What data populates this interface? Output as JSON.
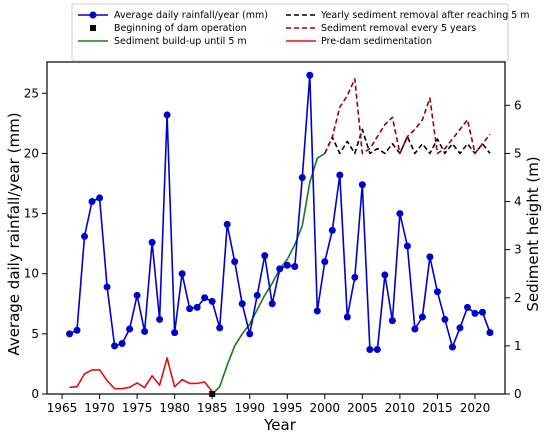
{
  "chart_data": {
    "type": "line",
    "xlabel": "Year",
    "ylabel_left": "Average daily rainfall/year (mm)",
    "ylabel_right": "Sediment height (m)",
    "xlim": [
      1963,
      2024
    ],
    "ylim_left": [
      0,
      27.6
    ],
    "ylim_right": [
      0,
      6.9
    ],
    "x_ticks": [
      1965,
      1970,
      1975,
      1980,
      1985,
      1990,
      1995,
      2000,
      2005,
      2010,
      2015,
      2020
    ],
    "y_ticks_left": [
      0,
      5,
      10,
      15,
      20,
      25
    ],
    "y_ticks_right": [
      0,
      1,
      2,
      3,
      4,
      5,
      6
    ],
    "grid": false,
    "legend": {
      "placement": "top",
      "entries": [
        "Average daily rainfall/year (mm)",
        "Beginning of dam operation",
        "Sediment build-up until 5 m",
        "Yearly sediment removal after reaching 5 m",
        "Sediment removal every 5 years",
        "Pre-dam sedimentation"
      ]
    },
    "series": [
      {
        "name": "Average daily rainfall/year (mm)",
        "axis": "left",
        "color": "#0000cc",
        "style": "solid-markers",
        "x": [
          1966,
          1967,
          1968,
          1969,
          1970,
          1971,
          1972,
          1973,
          1974,
          1975,
          1976,
          1977,
          1978,
          1979,
          1980,
          1981,
          1982,
          1983,
          1984,
          1985,
          1986,
          1987,
          1988,
          1989,
          1990,
          1991,
          1992,
          1993,
          1994,
          1995,
          1996,
          1997,
          1998,
          1999,
          2000,
          2001,
          2002,
          2003,
          2004,
          2005,
          2006,
          2007,
          2008,
          2009,
          2010,
          2011,
          2012,
          2013,
          2014,
          2015,
          2016,
          2017,
          2018,
          2019,
          2020,
          2021,
          2022
        ],
        "y": [
          5.0,
          5.3,
          13.1,
          16.0,
          16.3,
          8.9,
          4.0,
          4.2,
          5.4,
          8.2,
          5.2,
          12.6,
          6.2,
          23.2,
          5.1,
          10.0,
          7.1,
          7.2,
          8.0,
          7.7,
          5.5,
          14.1,
          11.0,
          7.5,
          5.0,
          8.2,
          11.5,
          7.5,
          10.4,
          10.7,
          10.6,
          18.0,
          26.5,
          6.9,
          11.0,
          13.6,
          18.2,
          6.4,
          9.7,
          17.4,
          3.7,
          3.7,
          9.9,
          6.1,
          15.0,
          12.3,
          5.4,
          6.4,
          11.4,
          8.5,
          6.2,
          3.9,
          5.5,
          7.2,
          6.7,
          6.8,
          5.1
        ]
      },
      {
        "name": "Pre-dam sedimentation",
        "axis": "right",
        "color": "#dd1111",
        "style": "solid",
        "x": [
          1966,
          1967,
          1968,
          1969,
          1970,
          1971,
          1972,
          1973,
          1974,
          1975,
          1976,
          1977,
          1978,
          1979,
          1980,
          1981,
          1982,
          1983,
          1984,
          1985
        ],
        "y": [
          0.14,
          0.15,
          0.42,
          0.5,
          0.5,
          0.28,
          0.11,
          0.11,
          0.14,
          0.23,
          0.13,
          0.38,
          0.18,
          0.75,
          0.15,
          0.3,
          0.22,
          0.22,
          0.25,
          0.05
        ]
      },
      {
        "name": "Sediment build-up until 5 m",
        "axis": "right",
        "color": "#1a7a1a",
        "style": "solid",
        "x": [
          1985,
          1986,
          1987,
          1988,
          1989,
          1990,
          1991,
          1992,
          1993,
          1994,
          1995,
          1996,
          1997,
          1998,
          1999,
          2000
        ],
        "y": [
          0.0,
          0.15,
          0.6,
          1.0,
          1.25,
          1.45,
          1.75,
          2.05,
          2.3,
          2.6,
          2.8,
          3.1,
          3.5,
          4.4,
          4.9,
          5.0
        ]
      },
      {
        "name": "Yearly sediment removal after reaching 5 m",
        "axis": "right",
        "color": "#000000",
        "style": "dashed",
        "x": [
          2000,
          2001,
          2002,
          2003,
          2004,
          2005,
          2006,
          2007,
          2008,
          2009,
          2010,
          2011,
          2012,
          2013,
          2014,
          2015,
          2016,
          2017,
          2018,
          2019,
          2020,
          2021,
          2022
        ],
        "y": [
          5.0,
          5.34,
          5.0,
          5.25,
          5.0,
          5.5,
          5.0,
          5.1,
          5.0,
          5.2,
          5.0,
          5.35,
          5.0,
          5.2,
          5.0,
          5.3,
          5.0,
          5.2,
          5.0,
          5.2,
          5.0,
          5.2,
          5.0
        ]
      },
      {
        "name": "Sediment removal every 5 years",
        "axis": "right",
        "color": "#990000",
        "style": "dashed",
        "x": [
          2000,
          2001,
          2002,
          2003,
          2004,
          2005,
          2006,
          2007,
          2008,
          2009,
          2010,
          2011,
          2012,
          2013,
          2014,
          2015,
          2016,
          2017,
          2018,
          2019,
          2020,
          2021,
          2022
        ],
        "y": [
          5.0,
          5.34,
          5.96,
          6.2,
          6.55,
          5.0,
          5.1,
          5.35,
          5.6,
          5.75,
          5.0,
          5.35,
          5.5,
          5.7,
          6.15,
          5.0,
          5.1,
          5.3,
          5.5,
          5.7,
          5.0,
          5.2,
          5.4
        ]
      }
    ],
    "markers": [
      {
        "name": "Beginning of dam operation",
        "axis": "right",
        "color": "#000000",
        "shape": "square",
        "x": 1985,
        "y": 0.0
      }
    ]
  }
}
